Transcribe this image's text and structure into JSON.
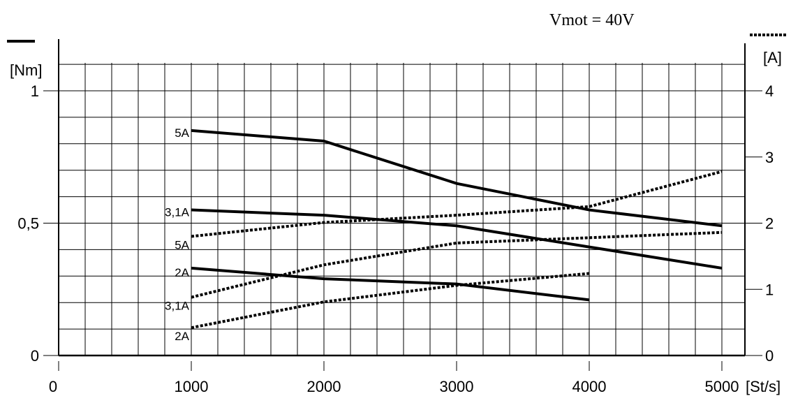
{
  "chart_data": {
    "type": "line",
    "title": "Vmot = 40V",
    "x_axis": {
      "unit_label": "[St/s]",
      "ticks": [
        "0",
        "1000",
        "2000",
        "3000",
        "4000",
        "5000"
      ],
      "range": [
        0,
        5200
      ]
    },
    "y_left": {
      "unit_label": "[Nm]",
      "ticks": [
        "0",
        "0,5",
        "1"
      ],
      "range": [
        0,
        1.2
      ],
      "line_style": "solid"
    },
    "y_right": {
      "unit_label": "[A]",
      "ticks": [
        "0",
        "1",
        "2",
        "3",
        "4"
      ],
      "range": [
        0,
        4.8
      ],
      "line_style": "dotted"
    },
    "grid": true,
    "series": [
      {
        "name": "5A",
        "axis": "left",
        "style": "solid",
        "x": [
          1000,
          2000,
          3000,
          4000,
          5000
        ],
        "y": [
          0.85,
          0.81,
          0.65,
          0.55,
          0.49
        ]
      },
      {
        "name": "3,1A",
        "axis": "left",
        "style": "solid",
        "x": [
          1000,
          2000,
          3000,
          4000,
          5000
        ],
        "y": [
          0.55,
          0.53,
          0.49,
          0.41,
          0.33
        ]
      },
      {
        "name": "2A",
        "axis": "left",
        "style": "solid",
        "x": [
          1000,
          2000,
          3000,
          4000
        ],
        "y": [
          0.33,
          0.29,
          0.27,
          0.21
        ]
      },
      {
        "name": "5A",
        "axis": "right",
        "style": "dotted",
        "x": [
          1000,
          2000,
          3000,
          4000,
          5000
        ],
        "y": [
          1.8,
          2.01,
          2.12,
          2.25,
          2.78
        ]
      },
      {
        "name": "3,1A",
        "axis": "right",
        "style": "dotted",
        "x": [
          1000,
          2000,
          3000,
          4000,
          5000
        ],
        "y": [
          0.88,
          1.37,
          1.7,
          1.78,
          1.86
        ]
      },
      {
        "name": "2A",
        "axis": "right",
        "style": "dotted",
        "x": [
          1000,
          2000,
          3000,
          4000
        ],
        "y": [
          0.42,
          0.81,
          1.06,
          1.24
        ]
      }
    ]
  }
}
